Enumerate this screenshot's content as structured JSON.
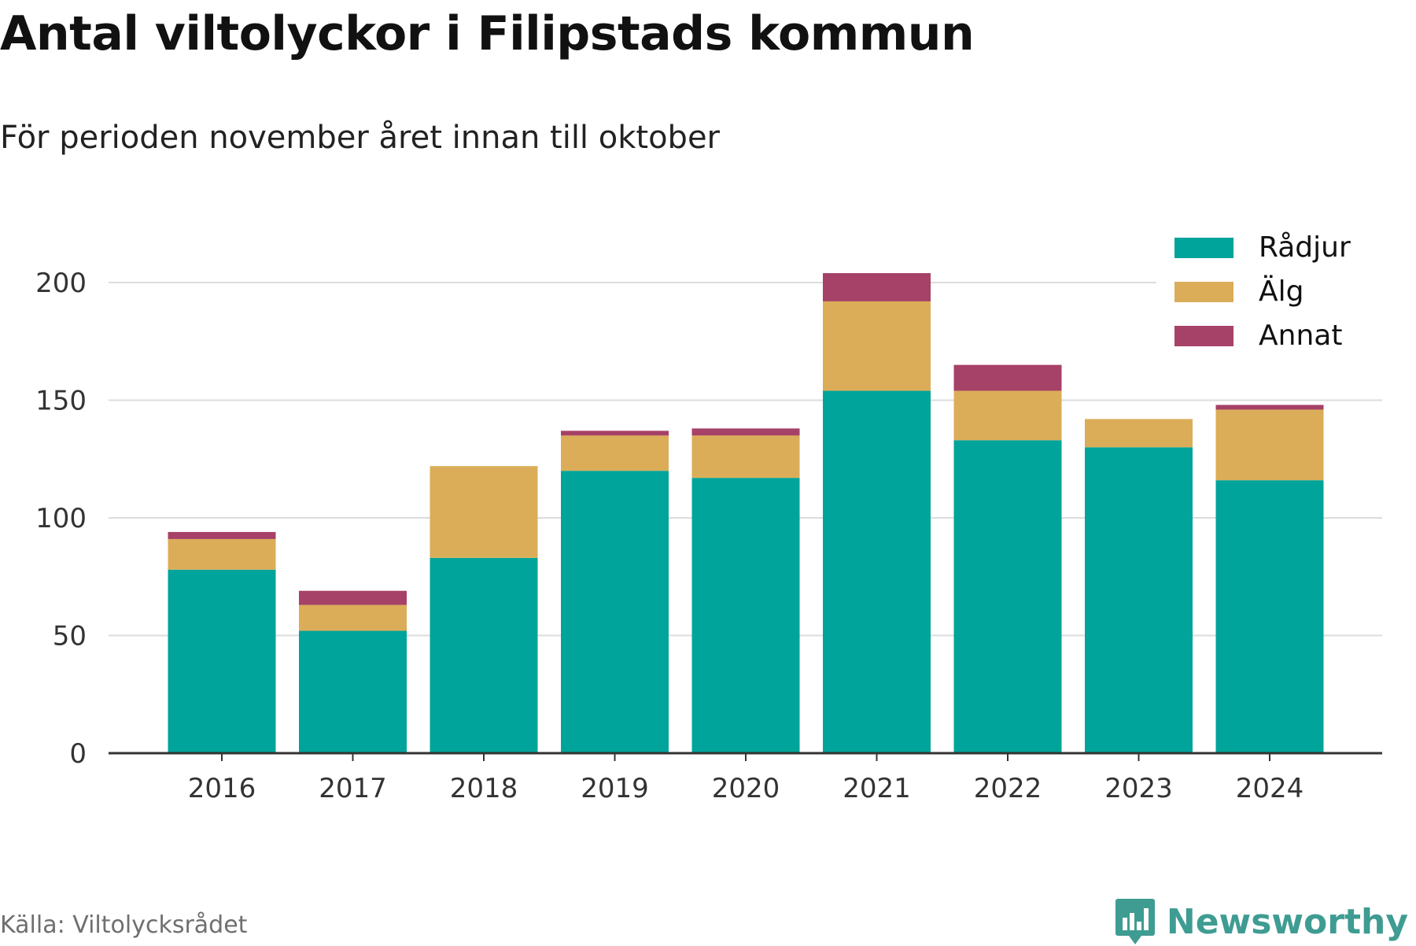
{
  "header": {
    "title": "Antal viltolyckor i Filipstads kommun",
    "subtitle": "För perioden november året innan till oktober"
  },
  "footer": {
    "source": "Källa: Viltolycksrådet",
    "brand": "Newsworthy",
    "brand_icon": "bar-chart-logo-icon",
    "brand_color": "#3f9c92"
  },
  "chart_data": {
    "type": "bar",
    "stacked": true,
    "categories": [
      "2016",
      "2017",
      "2018",
      "2019",
      "2020",
      "2021",
      "2022",
      "2023",
      "2024"
    ],
    "series": [
      {
        "name": "Rådjur",
        "color": "#00a49a",
        "values": [
          78,
          52,
          83,
          120,
          117,
          154,
          133,
          130,
          116
        ]
      },
      {
        "name": "Älg",
        "color": "#dbad58",
        "values": [
          13,
          11,
          39,
          15,
          18,
          38,
          21,
          12,
          30
        ]
      },
      {
        "name": "Annat",
        "color": "#a64167",
        "values": [
          3,
          6,
          0,
          2,
          3,
          12,
          11,
          0,
          2
        ]
      }
    ],
    "ylim": [
      0,
      220
    ],
    "yticks": [
      0,
      50,
      100,
      150,
      200
    ],
    "grid": true,
    "legend_position": "top-right",
    "xlabel": "",
    "ylabel": ""
  }
}
